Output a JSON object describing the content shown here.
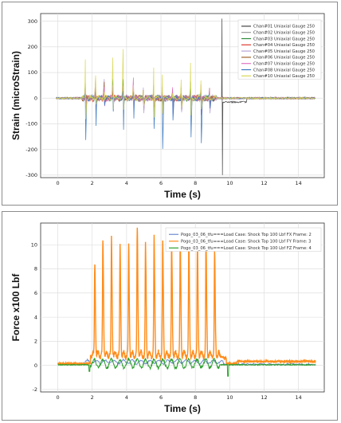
{
  "chart_data": [
    {
      "type": "line",
      "xlabel": "Time (s)",
      "ylabel": "Strain (microStrain)",
      "xlim": [
        -1,
        15.5
      ],
      "ylim": [
        -310,
        330
      ],
      "xticks": [
        0,
        2,
        4,
        6,
        8,
        10,
        12,
        14
      ],
      "yticks": [
        -300,
        -200,
        -100,
        0,
        100,
        200,
        300
      ],
      "grid": true,
      "legend_position": "top-right",
      "peaks_x": [
        1.62,
        2.2,
        2.7,
        3.2,
        3.8,
        4.4,
        5.0,
        5.6,
        6.1,
        6.7,
        7.2,
        7.75,
        8.35,
        8.85
      ],
      "series": [
        {
          "name": "Chan#01 Uniaxial Gauge 250",
          "color": "#444444",
          "amp_pos": 40,
          "amp_neg": -40,
          "spike": [
            9.55,
            310,
            -300
          ],
          "post": -15
        },
        {
          "name": "Chan#02 Uniaxial Gauge 250",
          "color": "#9b9b9b",
          "amp_pos": 60,
          "amp_neg": -60
        },
        {
          "name": "Chan#03 Uniaxial Gauge 250",
          "color": "#2e8b3a",
          "amp_pos": 90,
          "amp_neg": -80
        },
        {
          "name": "Chan#04 Uniaxial Gauge 250",
          "color": "#e03a2f",
          "amp_pos": 40,
          "amp_neg": -50
        },
        {
          "name": "Chan#05 Uniaxial Gauge 250",
          "color": "#b7a3d6",
          "amp_pos": 70,
          "amp_neg": -60
        },
        {
          "name": "Chan#06 Uniaxial Gauge 250",
          "color": "#a0622d",
          "amp_pos": 60,
          "amp_neg": -40
        },
        {
          "name": "Chan#07 Uniaxial Gauge 250",
          "color": "#e377c2",
          "amp_pos": 80,
          "amp_neg": -70
        },
        {
          "name": "Chan#08 Uniaxial Gauge 250",
          "color": "#3a78c2",
          "amp_pos": 30,
          "amp_neg": -200
        },
        {
          "name": "Chan#10 Uniaxial Gauge 250",
          "color": "#d8d855",
          "amp_pos": 210,
          "amp_neg": -80
        }
      ]
    },
    {
      "type": "line",
      "xlabel": "Time (s)",
      "ylabel": "Force x100 Lbf",
      "xlim": [
        -1,
        15.5
      ],
      "ylim": [
        -2.2,
        11.8
      ],
      "xticks": [
        0,
        2,
        4,
        6,
        8,
        10,
        12,
        14
      ],
      "yticks": [
        -2,
        0,
        2,
        4,
        6,
        8,
        10
      ],
      "grid": true,
      "legend_position": "top-right",
      "series": [
        {
          "name": "Pogo_03_06_tfu===Load Case: Shock Top 100 Lbf FX Frame: 2",
          "color": "#6f8ccf",
          "x": [
            0,
            1.5,
            2.0,
            10.0,
            15
          ],
          "y": [
            0.1,
            0.1,
            0.3,
            0.2,
            0.1
          ]
        },
        {
          "name": "Pogo_03_06_tfu===Load Case: Shock Top 100 Lbf FY Frame: 3",
          "color": "#ff8c1a",
          "peaks_x": [
            2.15,
            2.62,
            3.12,
            3.62,
            4.12,
            4.62,
            5.1,
            5.6,
            6.1,
            6.62,
            7.12,
            7.62,
            8.12,
            8.62,
            9.12
          ],
          "peaks_y": [
            8.5,
            10.4,
            10.5,
            9.8,
            9.9,
            11.3,
            9.9,
            10.5,
            10.1,
            10.1,
            10.5,
            10.3,
            10.0,
            9.9,
            9.2
          ],
          "baseline": 0.15,
          "post_level": 0.6
        },
        {
          "name": "Pogo_03_06_tfu===Load Case: Shock Top 100 Lbf FZ Frame: 4",
          "color": "#2ca02c",
          "x": [
            0,
            1.5,
            9.8,
            10.0,
            15
          ],
          "y": [
            0.05,
            0.05,
            0.0,
            -0.9,
            0.05
          ]
        }
      ]
    }
  ]
}
